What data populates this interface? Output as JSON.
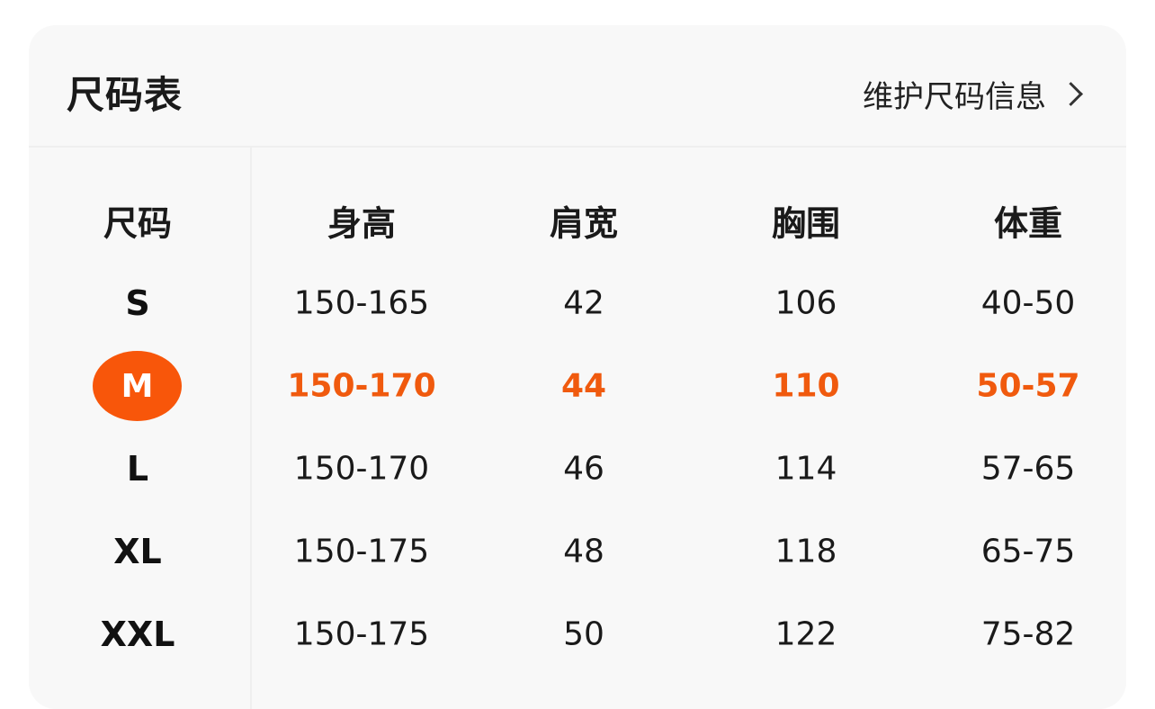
{
  "header": {
    "title": "尺码表",
    "maintain_label": "维护尺码信息"
  },
  "table": {
    "columns": [
      "尺码",
      "身高",
      "肩宽",
      "胸围",
      "体重"
    ],
    "rows": [
      {
        "size": "S",
        "values": [
          "150-165",
          "42",
          "106",
          "40-50"
        ],
        "highlighted": false
      },
      {
        "size": "M",
        "values": [
          "150-170",
          "44",
          "110",
          "50-57"
        ],
        "highlighted": true
      },
      {
        "size": "L",
        "values": [
          "150-170",
          "46",
          "114",
          "57-65"
        ],
        "highlighted": false
      },
      {
        "size": "XL",
        "values": [
          "150-175",
          "48",
          "118",
          "65-75"
        ],
        "highlighted": false
      },
      {
        "size": "XXL",
        "values": [
          "150-175",
          "50",
          "122",
          "75-82"
        ],
        "highlighted": false
      }
    ]
  },
  "colors": {
    "accent": "#f05a0e",
    "badge": "#f8560a",
    "card": "#f8f8f8"
  },
  "icons": {
    "maintain": "chevron-right-icon"
  }
}
